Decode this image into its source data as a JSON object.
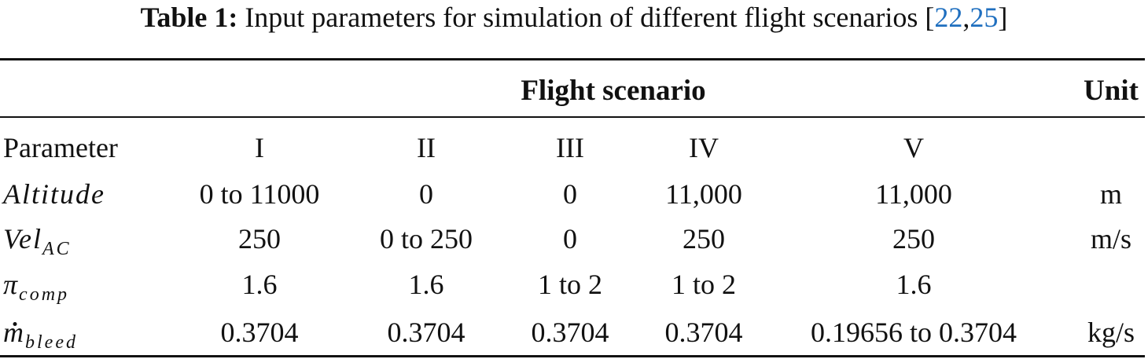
{
  "caption": {
    "label": "Table 1:",
    "text": "Input parameters for simulation of different flight scenarios",
    "cite_open": "[",
    "cite_ref_1": "22",
    "cite_sep": ",",
    "cite_ref_2": "25",
    "cite_close": "]",
    "cite_color": "#1f6fbf"
  },
  "header": {
    "group_label": "Flight scenario",
    "unit_label": "Unit",
    "param_label": "Parameter",
    "scenarios": [
      "I",
      "II",
      "III",
      "IV",
      "V"
    ]
  },
  "rows": [
    {
      "param_base": "Altitude",
      "param_sub": "",
      "values": [
        "0 to 11000",
        "0",
        "0",
        "11,000",
        "11,000"
      ],
      "unit": "m"
    },
    {
      "param_base": "Vel",
      "param_sub": "AC",
      "values": [
        "250",
        "0 to 250",
        "0",
        "250",
        "250"
      ],
      "unit": "m/s"
    },
    {
      "param_base": "π",
      "param_sub": "comp",
      "values": [
        "1.6",
        "1.6",
        "1 to 2",
        "1 to 2",
        "1.6"
      ],
      "unit": ""
    },
    {
      "param_base": "m",
      "param_sub": "bleed",
      "values": [
        "0.3704",
        "0.3704",
        "0.3704",
        "0.3704",
        "0.19656 to 0.3704"
      ],
      "unit": "kg/s"
    }
  ]
}
